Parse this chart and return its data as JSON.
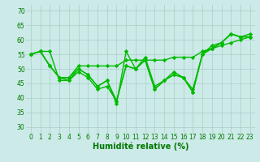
{
  "bg_color": "#cceae7",
  "grid_color": "#aaccca",
  "line_color": "#00bb00",
  "marker": "D",
  "markersize": 2.2,
  "linewidth": 1.0,
  "xlabel": "Humidité relative (%)",
  "xlabel_color": "#007700",
  "xlabel_fontsize": 7,
  "tick_fontsize": 5.5,
  "tick_color": "#007700",
  "xlim": [
    -0.5,
    23.5
  ],
  "ylim": [
    28,
    72
  ],
  "yticks": [
    30,
    35,
    40,
    45,
    50,
    55,
    60,
    65,
    70
  ],
  "xticks": [
    0,
    1,
    2,
    3,
    4,
    5,
    6,
    7,
    8,
    9,
    10,
    11,
    12,
    13,
    14,
    15,
    16,
    17,
    18,
    19,
    20,
    21,
    22,
    23
  ],
  "series": [
    [
      55,
      56,
      56,
      46,
      46,
      50,
      48,
      44,
      46,
      38,
      56,
      50,
      54,
      44,
      46,
      49,
      47,
      43,
      55,
      58,
      59,
      62,
      61,
      62
    ],
    [
      55,
      56,
      51,
      47,
      46,
      49,
      47,
      43,
      44,
      39,
      51,
      50,
      53,
      43,
      46,
      48,
      47,
      42,
      55,
      57,
      59,
      62,
      61,
      61
    ],
    [
      55,
      56,
      51,
      47,
      47,
      50,
      48,
      44,
      46,
      39,
      51,
      50,
      53,
      43,
      46,
      48,
      47,
      42,
      55,
      57,
      59,
      62,
      61,
      61
    ],
    [
      55,
      56,
      51,
      47,
      47,
      51,
      51,
      51,
      51,
      51,
      53,
      53,
      53,
      53,
      53,
      54,
      54,
      54,
      56,
      57,
      58,
      59,
      60,
      61
    ]
  ]
}
